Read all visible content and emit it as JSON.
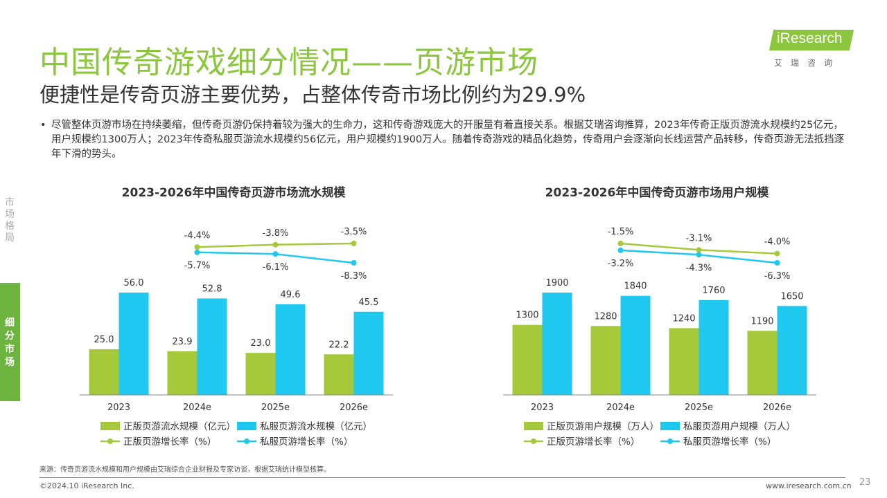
{
  "title": "中国传奇游戏细分情况——页游市场",
  "subtitle": "便捷性是传奇页游主要优势，占整体传奇市场比例约为29.9%",
  "logo": {
    "brand": "iResearch",
    "cn": "艾瑞咨询"
  },
  "bullet": "尽管整体页游市场在持续萎缩，但传奇页游仍保持着较为强大的生命力，这和传奇游戏庞大的开服量有着直接关系。根据艾瑞咨询推算，2023年传奇正版页游流水规模约25亿元，用户规模约1300万人；2023年传奇私服页游流水规模约56亿元，用户规模约1900万人。随着传奇游戏的精品化趋势，传奇用户会逐渐向长线运营产品转移，传奇页游无法抵挡逐年下滑的势头。",
  "side_nav": {
    "inactive": "市场格局",
    "active": "细分市场"
  },
  "chart_data": [
    {
      "type": "bar",
      "title": "2023-2026年中国传奇页游市场流水规模",
      "categories": [
        "2023",
        "2024e",
        "2025e",
        "2026e"
      ],
      "series": [
        {
          "name": "正版页游流水规模（亿元）",
          "values": [
            25.0,
            23.9,
            23.0,
            22.2
          ],
          "labels": [
            "25.0",
            "23.9",
            "23.0",
            "22.2"
          ],
          "color": "#a5c93a"
        },
        {
          "name": "私服页游流水规模（亿元）",
          "values": [
            56.0,
            52.8,
            49.6,
            45.5
          ],
          "labels": [
            "56.0",
            "52.8",
            "49.6",
            "45.5"
          ],
          "color": "#1ec8ef"
        }
      ],
      "growth": [
        {
          "name": "正版页游增长率（%）",
          "values": [
            -4.4,
            -3.8,
            -3.5
          ],
          "labels": [
            "-4.4%",
            "-3.8%",
            "-3.5%"
          ],
          "color": "#a5c93a"
        },
        {
          "name": "私服页游增长率（%）",
          "values": [
            -5.7,
            -6.1,
            -8.3
          ],
          "labels": [
            "-5.7%",
            "-6.1%",
            "-8.3%"
          ],
          "color": "#1ec8ef"
        }
      ]
    },
    {
      "type": "bar",
      "title": "2023-2026年中国传奇页游市场用户规模",
      "categories": [
        "2023",
        "2024e",
        "2025e",
        "2026e"
      ],
      "series": [
        {
          "name": "正版页游用户规模（万人）",
          "values": [
            1300,
            1280,
            1240,
            1190
          ],
          "labels": [
            "1300",
            "1280",
            "1240",
            "1190"
          ],
          "color": "#a5c93a"
        },
        {
          "name": "私服页游用户规模（万人）",
          "values": [
            1900,
            1840,
            1760,
            1650
          ],
          "labels": [
            "1900",
            "1840",
            "1760",
            "1650"
          ],
          "color": "#1ec8ef"
        }
      ],
      "growth": [
        {
          "name": "正版页游增长率（%）",
          "values": [
            -1.5,
            -3.1,
            -4.0
          ],
          "labels": [
            "-1.5%",
            "-3.1%",
            "-4.0%"
          ],
          "color": "#a5c93a"
        },
        {
          "name": "私服页游增长率（%）",
          "values": [
            -3.2,
            -4.3,
            -6.3
          ],
          "labels": [
            "-3.2%",
            "-4.3%",
            "-6.3%"
          ],
          "color": "#1ec8ef"
        }
      ]
    }
  ],
  "footnote": "来源：传奇页游流水规模和用户规模由艾瑞综合企业财报及专家访谈，根据艾瑞统计模型核算。",
  "copyright": "©2024.10 iResearch Inc.",
  "website": "www.iresearch.com.cn",
  "page_number": "23"
}
